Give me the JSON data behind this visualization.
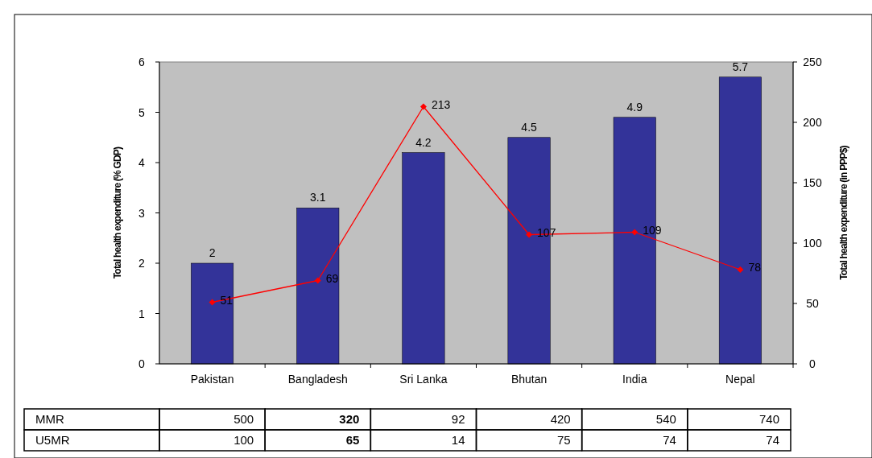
{
  "chart_data": {
    "type": "bar",
    "ylabel": "Total health expenditure (% GDP)",
    "y2label": "Total health expenditure (in PPP$)",
    "categories": [
      "Pakistan",
      "Bangladesh",
      "Sri Lanka",
      "Bhutan",
      "India",
      "Nepal"
    ],
    "series": [
      {
        "color": "#333399",
        "values": [
          2,
          3.1,
          4.2,
          4.5,
          4.9,
          5.7
        ]
      },
      {
        "type": "line",
        "axis": "y2",
        "color": "#ff0000",
        "values": [
          51,
          69,
          213,
          107,
          109,
          78
        ],
        "marker": "diamond",
        "line_style": "solid"
      }
    ],
    "ylim": [
      0,
      6
    ],
    "yticks": [
      0,
      1,
      2,
      3,
      4,
      5,
      6
    ],
    "y2lim": [
      0,
      250
    ],
    "y2ticks": [
      0,
      50,
      100,
      150,
      200,
      250
    ],
    "data_labels": true,
    "grid": false,
    "annotations": [
      "MMR",
      "500",
      "320",
      "92",
      "420",
      "540",
      "740",
      "U5MR",
      "100",
      "65",
      "14",
      "75",
      "74",
      "74"
    ]
  }
}
